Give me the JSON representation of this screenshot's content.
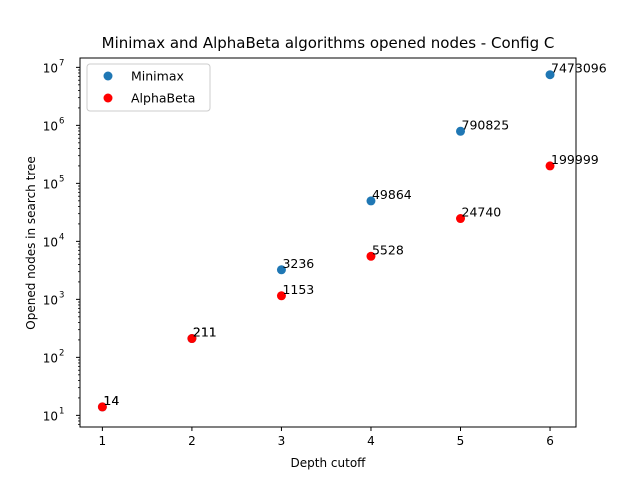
{
  "chart_data": {
    "type": "scatter",
    "title": "Minimax and AlphaBeta algorithms opened nodes - Config C",
    "xlabel": "Depth cutoff",
    "ylabel": "Opened nodes in search tree",
    "x_ticks": [
      "1",
      "2",
      "3",
      "4",
      "5",
      "6"
    ],
    "y_scale": "log",
    "y_ticks": [
      {
        "value": 10,
        "base": "10",
        "exp": "1"
      },
      {
        "value": 100,
        "base": "10",
        "exp": "2"
      },
      {
        "value": 1000,
        "base": "10",
        "exp": "3"
      },
      {
        "value": 10000,
        "base": "10",
        "exp": "4"
      },
      {
        "value": 100000,
        "base": "10",
        "exp": "5"
      },
      {
        "value": 1000000,
        "base": "10",
        "exp": "6"
      },
      {
        "value": 10000000,
        "base": "10",
        "exp": "7"
      }
    ],
    "xlim": [
      0.75,
      6.29
    ],
    "ylim": [
      6.3,
      14500000
    ],
    "grid": false,
    "legend_position": "top-left",
    "series": [
      {
        "name": "Minimax",
        "color": "#1f77b4",
        "points": [
          {
            "x": 1,
            "y": 14,
            "label": "14"
          },
          {
            "x": 2,
            "y": 211,
            "label": "211"
          },
          {
            "x": 3,
            "y": 3236,
            "label": "3236"
          },
          {
            "x": 4,
            "y": 49864,
            "label": "49864"
          },
          {
            "x": 5,
            "y": 790825,
            "label": "790825"
          },
          {
            "x": 6,
            "y": 7473096,
            "label": "7473096"
          }
        ]
      },
      {
        "name": "AlphaBeta",
        "color": "#ff0000",
        "points": [
          {
            "x": 1,
            "y": 14,
            "label": "14"
          },
          {
            "x": 2,
            "y": 211,
            "label": "211"
          },
          {
            "x": 3,
            "y": 1153,
            "label": "1153"
          },
          {
            "x": 4,
            "y": 5528,
            "label": "5528"
          },
          {
            "x": 5,
            "y": 24740,
            "label": "24740"
          },
          {
            "x": 6,
            "y": 199999,
            "label": "199999"
          }
        ]
      }
    ]
  }
}
